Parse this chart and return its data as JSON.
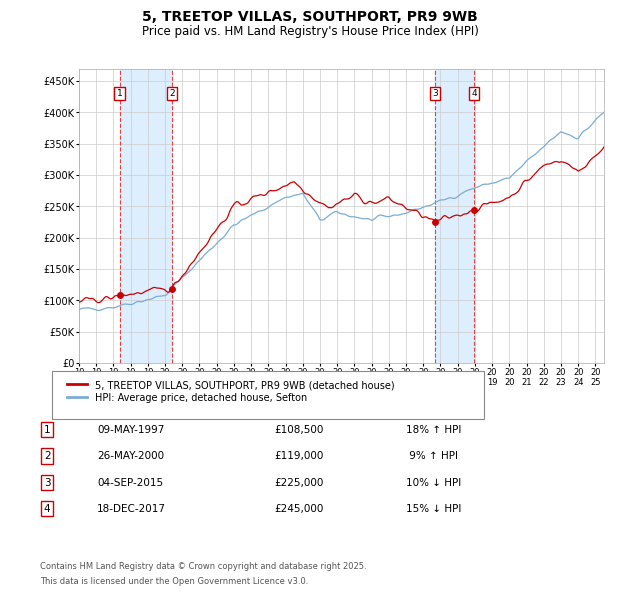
{
  "title_line1": "5, TREETOP VILLAS, SOUTHPORT, PR9 9WB",
  "title_line2": "Price paid vs. HM Land Registry's House Price Index (HPI)",
  "xlim_start": 1995.0,
  "xlim_end": 2025.5,
  "ylim_min": 0,
  "ylim_max": 470000,
  "yticks": [
    0,
    50000,
    100000,
    150000,
    200000,
    250000,
    300000,
    350000,
    400000,
    450000
  ],
  "ytick_labels": [
    "£0",
    "£50K",
    "£100K",
    "£150K",
    "£200K",
    "£250K",
    "£300K",
    "£350K",
    "£400K",
    "£450K"
  ],
  "xticks": [
    1995,
    1996,
    1997,
    1998,
    1999,
    2000,
    2001,
    2002,
    2003,
    2004,
    2005,
    2006,
    2007,
    2008,
    2009,
    2010,
    2011,
    2012,
    2013,
    2014,
    2015,
    2016,
    2017,
    2018,
    2019,
    2020,
    2021,
    2022,
    2023,
    2024,
    2025
  ],
  "sale_dates": [
    1997.36,
    2000.4,
    2015.67,
    2017.96
  ],
  "sale_prices": [
    108500,
    119000,
    225000,
    245000
  ],
  "sale_labels": [
    "1",
    "2",
    "3",
    "4"
  ],
  "legend_red": "5, TREETOP VILLAS, SOUTHPORT, PR9 9WB (detached house)",
  "legend_blue": "HPI: Average price, detached house, Sefton",
  "table_data": [
    [
      "1",
      "09-MAY-1997",
      "£108,500",
      "18% ↑ HPI"
    ],
    [
      "2",
      "26-MAY-2000",
      "£119,000",
      " 9% ↑ HPI"
    ],
    [
      "3",
      "04-SEP-2015",
      "£225,000",
      "10% ↓ HPI"
    ],
    [
      "4",
      "18-DEC-2017",
      "£245,000",
      "15% ↓ HPI"
    ]
  ],
  "footnote1": "Contains HM Land Registry data © Crown copyright and database right 2025.",
  "footnote2": "This data is licensed under the Open Government Licence v3.0.",
  "red_color": "#cc0000",
  "blue_color": "#7aadd4",
  "shade_color": "#ddeeff",
  "grid_color": "#cccccc",
  "dashed_color": "#dd4444",
  "label_box_color": "#cc0000",
  "background_color": "#ffffff"
}
